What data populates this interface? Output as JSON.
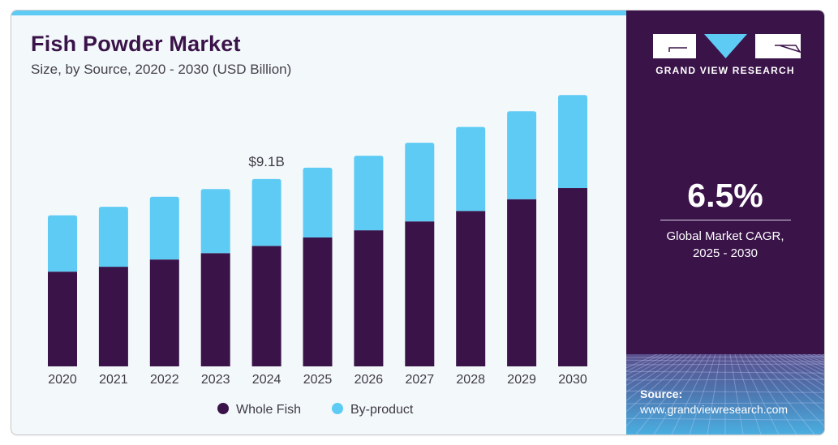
{
  "header": {
    "title": "Fish Powder Market",
    "subtitle": "Size, by Source, 2020 - 2030 (USD Billion)"
  },
  "brand": {
    "name": "GRAND VIEW RESEARCH",
    "colors": {
      "purple": "#3a1349",
      "blue": "#5ecbf5"
    }
  },
  "stat": {
    "value": "6.5%",
    "label_line1": "Global Market CAGR,",
    "label_line2": "2025 - 2030"
  },
  "source": {
    "label": "Source:",
    "url": "www.grandviewresearch.com"
  },
  "chart_data": {
    "type": "bar",
    "stacked": true,
    "title": "Fish Powder Market",
    "subtitle": "Size, by Source, 2020 - 2030 (USD Billion)",
    "xlabel": "",
    "ylabel": "USD Billion",
    "ylim": [
      0,
      14
    ],
    "grid": false,
    "legend_position": "bottom-center",
    "categories": [
      "2020",
      "2021",
      "2022",
      "2023",
      "2024",
      "2025",
      "2026",
      "2027",
      "2028",
      "2029",
      "2030"
    ],
    "series": [
      {
        "name": "Whole Fish",
        "color": "#3a1349",
        "values": [
          4.6,
          4.84,
          5.19,
          5.5,
          5.85,
          6.26,
          6.61,
          7.04,
          7.55,
          8.12,
          8.66
        ]
      },
      {
        "name": "By-product",
        "color": "#5ecbf5",
        "values": [
          2.74,
          2.91,
          3.05,
          3.11,
          3.25,
          3.39,
          3.62,
          3.82,
          4.08,
          4.27,
          4.52
        ]
      }
    ],
    "annotations": [
      {
        "category": "2024",
        "text": "$9.1B"
      }
    ]
  }
}
